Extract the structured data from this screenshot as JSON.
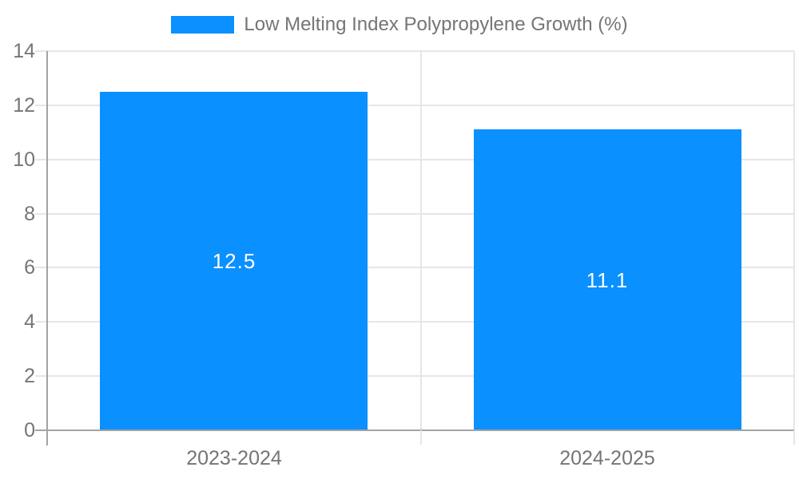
{
  "chart_data": {
    "type": "bar",
    "title": "Low Melting Index Polypropylene Growth (%)",
    "legend": "Low Melting Index Polypropylene Growth (%)",
    "legend_position": "top",
    "categories": [
      "2023-2024",
      "2024-2025"
    ],
    "series": [
      {
        "name": "Low Melting Index Polypropylene Growth (%)",
        "values": [
          12.5,
          11.1
        ],
        "color": "#0a90ff"
      }
    ],
    "value_labels": [
      "12.5",
      "11.1"
    ],
    "xlabel": "",
    "ylabel": "",
    "ylim": [
      0,
      14
    ],
    "y_ticks": [
      0,
      2,
      4,
      6,
      8,
      10,
      12,
      14
    ],
    "grid": true
  },
  "colors": {
    "bar": "#0a90ff",
    "text": "#757575",
    "grid": "#e6e6e6",
    "tick": "#e6e6e6",
    "axis": "#a3a3a3",
    "value_label": "#ffffff",
    "background": "#ffffff"
  }
}
